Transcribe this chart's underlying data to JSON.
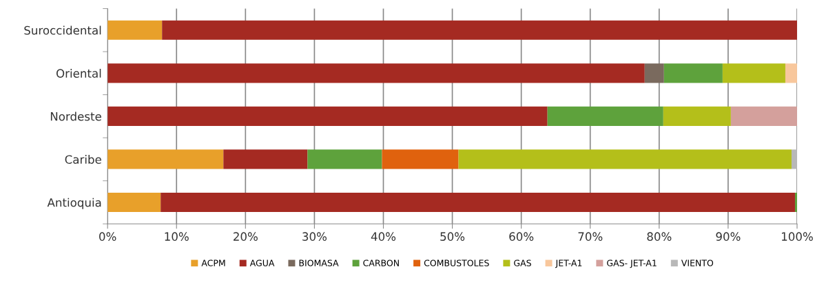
{
  "chart_data": {
    "type": "bar",
    "orientation": "horizontal",
    "stacked": true,
    "categories": [
      "Suroccidental",
      "Oriental",
      "Nordeste",
      "Caribe",
      "Antioquia"
    ],
    "series": [
      {
        "name": "ACPM",
        "color": "#e8a02a",
        "values": [
          7.9,
          null,
          null,
          16.8,
          7.7
        ]
      },
      {
        "name": "AGUA",
        "color": "#a52a22",
        "values": [
          92.1,
          77.9,
          63.8,
          12.2,
          92.0
        ]
      },
      {
        "name": "BIOMASA",
        "color": "#7a6a5e",
        "values": [
          null,
          2.8,
          null,
          null,
          null
        ]
      },
      {
        "name": "CARBON",
        "color": "#5ea23c",
        "values": [
          null,
          8.5,
          16.8,
          10.8,
          0.3
        ]
      },
      {
        "name": "COMBUSTOLES",
        "color": "#e0620e",
        "values": [
          null,
          null,
          null,
          11.1,
          null
        ]
      },
      {
        "name": "GAS",
        "color": "#b4bf1a",
        "values": [
          null,
          9.1,
          9.8,
          48.3,
          null
        ]
      },
      {
        "name": "JET-A1",
        "color": "#f8c79c",
        "values": [
          null,
          1.7,
          null,
          null,
          null
        ]
      },
      {
        "name": "GAS- JET-A1",
        "color": "#d4a09c",
        "values": [
          null,
          null,
          9.6,
          null,
          null
        ]
      },
      {
        "name": "VIENTO",
        "color": "#b8b8b8",
        "values": [
          null,
          null,
          null,
          0.8,
          null
        ]
      }
    ],
    "xlim": [
      0,
      100
    ],
    "xticks": [
      {
        "value": 0,
        "label": "0%"
      },
      {
        "value": 10,
        "label": "10%"
      },
      {
        "value": 20,
        "label": "20%"
      },
      {
        "value": 30,
        "label": "30%"
      },
      {
        "value": 40,
        "label": "40%"
      },
      {
        "value": 50,
        "label": "50%"
      },
      {
        "value": 60,
        "label": "60%"
      },
      {
        "value": 70,
        "label": "70%"
      },
      {
        "value": 80,
        "label": "80%"
      },
      {
        "value": 90,
        "label": "90%"
      },
      {
        "value": 100,
        "label": "100%"
      }
    ],
    "grid": "x",
    "legend": "bottom"
  }
}
